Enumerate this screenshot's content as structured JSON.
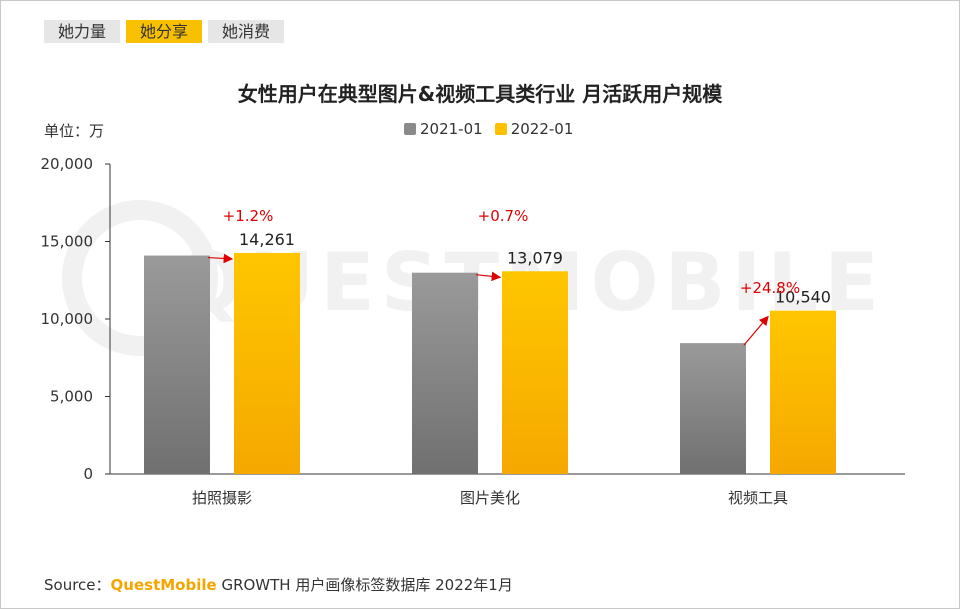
{
  "tabs": [
    {
      "label": "她力量",
      "active": false
    },
    {
      "label": "她分享",
      "active": true
    },
    {
      "label": "她消费",
      "active": false
    }
  ],
  "watermark": "QUESTMOBILE",
  "unit_label": "单位：万",
  "footer": {
    "source_label": "Source：",
    "brand": "QuestMobile",
    "rest": " GROWTH 用户画像标签数据库 2022年1月"
  },
  "colors": {
    "active_tab": "#f9c000",
    "inactive_tab": "#e6e6e6",
    "series_2021": "#8a8a8a",
    "series_2022": "#ffc000",
    "growth_arrow": "#e00000"
  },
  "chart_data": {
    "type": "bar",
    "title": "女性用户在典型图片&视频工具类行业 月活跃用户规模",
    "xlabel": "",
    "ylabel": "单位：万",
    "ylim": [
      0,
      20000
    ],
    "yticks": [
      0,
      5000,
      10000,
      15000,
      20000
    ],
    "ytick_labels": [
      "0",
      "5,000",
      "10,000",
      "15,000",
      "20,000"
    ],
    "categories": [
      "拍照摄影",
      "图片美化",
      "视频工具"
    ],
    "series": [
      {
        "name": "2021-01",
        "values": [
          14093,
          12988,
          8445
        ]
      },
      {
        "name": "2022-01",
        "values": [
          14261,
          13079,
          10540
        ]
      }
    ],
    "data_labels": [
      "14,261",
      "13,079",
      "10,540"
    ],
    "growth_labels": [
      "+1.2%",
      "+0.7%",
      "+24.8%"
    ],
    "legend_position": "top-center"
  }
}
